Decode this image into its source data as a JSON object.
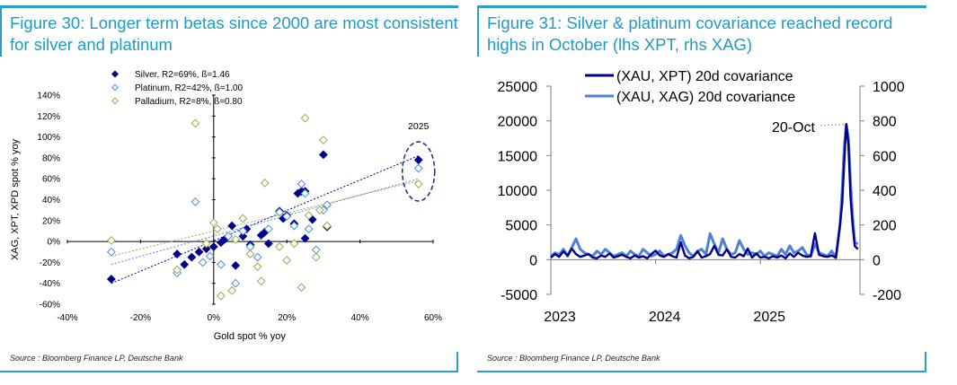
{
  "left_panel": {
    "title": "Figure 30: Longer term betas since 2000 are most consistent for silver and platinum",
    "source": "Source : Bloomberg Finance LP, Deutsche Bank"
  },
  "right_panel": {
    "title": "Figure 31: Silver & platinum covariance reached record highs in October (lhs XPT, rhs XAG)",
    "source": "Source : Bloomberg Finance LP, Deutsche Bank"
  },
  "chart_data": [
    {
      "type": "scatter",
      "xlabel": "Gold spot % yoy",
      "ylabel": "XAG, XPT, XPD spot % yoy",
      "xlim": [
        -40,
        60
      ],
      "ylim": [
        -60,
        140
      ],
      "x_ticks": [
        "-40%",
        "-20%",
        "0%",
        "20%",
        "40%",
        "60%"
      ],
      "y_ticks": [
        "-60%",
        "-40%",
        "-20%",
        "0%",
        "20%",
        "40%",
        "60%",
        "80%",
        "100%",
        "120%",
        "140%"
      ],
      "annotation": "2025",
      "series": [
        {
          "name": "Silver, R2=69%, ß=1.46",
          "color": "#00008b",
          "marker": "filled-diamond",
          "points": [
            [
              -28,
              -36
            ],
            [
              -10,
              -12
            ],
            [
              -8,
              -22
            ],
            [
              -6,
              -15
            ],
            [
              -4,
              -10
            ],
            [
              -2,
              -7
            ],
            [
              0,
              -5
            ],
            [
              2,
              -1
            ],
            [
              3,
              2
            ],
            [
              5,
              15
            ],
            [
              6,
              -23
            ],
            [
              8,
              5
            ],
            [
              9,
              12
            ],
            [
              10,
              -3
            ],
            [
              13,
              6
            ],
            [
              14,
              9
            ],
            [
              15,
              -2
            ],
            [
              18,
              29
            ],
            [
              19,
              22
            ],
            [
              20,
              25
            ],
            [
              22,
              17
            ],
            [
              23,
              46
            ],
            [
              24,
              48
            ],
            [
              25,
              48
            ],
            [
              25,
              3
            ],
            [
              27,
              21
            ],
            [
              30,
              83
            ],
            [
              31,
              14
            ],
            [
              56,
              78
            ]
          ]
        },
        {
          "name": "Platinum, R2=42%, ß=1.00",
          "color": "#4a90d9",
          "marker": "hollow-diamond",
          "points": [
            [
              -28,
              -10
            ],
            [
              -10,
              -30
            ],
            [
              -5,
              38
            ],
            [
              -3,
              -20
            ],
            [
              -1,
              -14
            ],
            [
              2,
              -22
            ],
            [
              4,
              5
            ],
            [
              6,
              -40
            ],
            [
              8,
              10
            ],
            [
              10,
              -5
            ],
            [
              12,
              -15
            ],
            [
              15,
              12
            ],
            [
              18,
              28
            ],
            [
              20,
              24
            ],
            [
              22,
              15
            ],
            [
              24,
              55
            ],
            [
              25,
              46
            ],
            [
              26,
              12
            ],
            [
              28,
              -8
            ],
            [
              30,
              30
            ],
            [
              31,
              35
            ],
            [
              56,
              70
            ]
          ]
        },
        {
          "name": "Palladium, R2=8%, ß=0.80",
          "color": "#9aab52",
          "marker": "hollow-diamond",
          "points": [
            [
              -28,
              1
            ],
            [
              -10,
              -27
            ],
            [
              -5,
              113
            ],
            [
              -2,
              -2
            ],
            [
              0,
              18
            ],
            [
              1,
              12
            ],
            [
              2,
              -52
            ],
            [
              5,
              -47
            ],
            [
              6,
              2
            ],
            [
              8,
              22
            ],
            [
              10,
              -12
            ],
            [
              12,
              -24
            ],
            [
              13,
              -38
            ],
            [
              14,
              56
            ],
            [
              18,
              -5
            ],
            [
              20,
              -18
            ],
            [
              22,
              -2
            ],
            [
              24,
              -44
            ],
            [
              25,
              118
            ],
            [
              26,
              25
            ],
            [
              28,
              -15
            ],
            [
              29,
              30
            ],
            [
              30,
              97
            ],
            [
              31,
              15
            ],
            [
              56,
              55
            ]
          ]
        }
      ]
    },
    {
      "type": "line",
      "x_ticks": [
        "2023",
        "2024",
        "2025"
      ],
      "x_range": [
        2023.0,
        2025.95
      ],
      "left_ylim": [
        -5000,
        25000
      ],
      "left_ticks": [
        "-5000",
        "0",
        "5000",
        "10000",
        "15000",
        "20000",
        "25000"
      ],
      "right_ylim": [
        -200,
        1000
      ],
      "right_ticks": [
        "-200",
        "0",
        "200",
        "400",
        "600",
        "800",
        "1000"
      ],
      "annotation": "20-Oct",
      "series": [
        {
          "name": "(XAU, XPT) 20d covariance",
          "axis": "left",
          "color": "#00008b",
          "x": [
            2023.0,
            2023.04,
            2023.08,
            2023.12,
            2023.16,
            2023.2,
            2023.24,
            2023.28,
            2023.32,
            2023.36,
            2023.4,
            2023.44,
            2023.48,
            2023.52,
            2023.56,
            2023.6,
            2023.64,
            2023.68,
            2023.72,
            2023.76,
            2023.8,
            2023.84,
            2023.88,
            2023.92,
            2023.96,
            2024.0,
            2024.04,
            2024.08,
            2024.12,
            2024.16,
            2024.2,
            2024.24,
            2024.28,
            2024.32,
            2024.36,
            2024.4,
            2024.44,
            2024.48,
            2024.52,
            2024.56,
            2024.6,
            2024.64,
            2024.68,
            2024.72,
            2024.76,
            2024.8,
            2024.84,
            2024.88,
            2024.92,
            2024.96,
            2025.0,
            2025.04,
            2025.08,
            2025.12,
            2025.16,
            2025.2,
            2025.24,
            2025.28,
            2025.32,
            2025.36,
            2025.4,
            2025.44,
            2025.48,
            2025.52,
            2025.56,
            2025.6,
            2025.64,
            2025.68,
            2025.72,
            2025.76,
            2025.78,
            2025.8,
            2025.82,
            2025.84,
            2025.86,
            2025.88,
            2025.9,
            2025.93
          ],
          "y": [
            300,
            800,
            400,
            1200,
            600,
            1600,
            800,
            400,
            600,
            800,
            300,
            200,
            600,
            400,
            900,
            300,
            500,
            700,
            400,
            200,
            600,
            300,
            500,
            200,
            800,
            1300,
            600,
            400,
            800,
            500,
            300,
            2500,
            600,
            200,
            400,
            1200,
            300,
            500,
            800,
            2000,
            700,
            600,
            1500,
            400,
            300,
            800,
            500,
            1600,
            300,
            900,
            300,
            400,
            200,
            500,
            300,
            600,
            200,
            900,
            400,
            1000,
            600,
            400,
            500,
            3800,
            700,
            500,
            400,
            600,
            300,
            5000,
            8000,
            14000,
            19500,
            16500,
            9000,
            5000,
            2000,
            1500
          ]
        },
        {
          "name": "(XAU, XAG) 20d covariance",
          "axis": "right",
          "color": "#4f81d4",
          "x": [
            2023.0,
            2023.04,
            2023.08,
            2023.12,
            2023.16,
            2023.2,
            2023.24,
            2023.28,
            2023.32,
            2023.36,
            2023.4,
            2023.44,
            2023.48,
            2023.52,
            2023.56,
            2023.6,
            2023.64,
            2023.68,
            2023.72,
            2023.76,
            2023.8,
            2023.84,
            2023.88,
            2023.92,
            2023.96,
            2024.0,
            2024.04,
            2024.08,
            2024.12,
            2024.16,
            2024.2,
            2024.24,
            2024.28,
            2024.32,
            2024.36,
            2024.4,
            2024.44,
            2024.48,
            2024.52,
            2024.56,
            2024.6,
            2024.64,
            2024.68,
            2024.72,
            2024.76,
            2024.8,
            2024.84,
            2024.88,
            2024.92,
            2024.96,
            2025.0,
            2025.04,
            2025.08,
            2025.12,
            2025.16,
            2025.2,
            2025.24,
            2025.28,
            2025.32,
            2025.36,
            2025.4,
            2025.44,
            2025.48,
            2025.52,
            2025.56,
            2025.6,
            2025.64,
            2025.68,
            2025.72,
            2025.76,
            2025.78,
            2025.8,
            2025.82,
            2025.84,
            2025.86,
            2025.88,
            2025.9,
            2025.93
          ],
          "y": [
            20,
            40,
            30,
            60,
            20,
            70,
            120,
            60,
            40,
            30,
            20,
            50,
            30,
            60,
            40,
            20,
            30,
            40,
            20,
            50,
            30,
            20,
            60,
            40,
            20,
            30,
            50,
            20,
            30,
            40,
            60,
            140,
            80,
            40,
            20,
            50,
            60,
            30,
            150,
            90,
            40,
            120,
            60,
            30,
            40,
            110,
            60,
            30,
            40,
            30,
            50,
            20,
            40,
            30,
            20,
            60,
            30,
            80,
            40,
            50,
            70,
            30,
            20,
            90,
            40,
            30,
            20,
            50,
            10,
            200,
            400,
            650,
            780,
            700,
            450,
            250,
            100,
            90
          ]
        }
      ]
    }
  ]
}
